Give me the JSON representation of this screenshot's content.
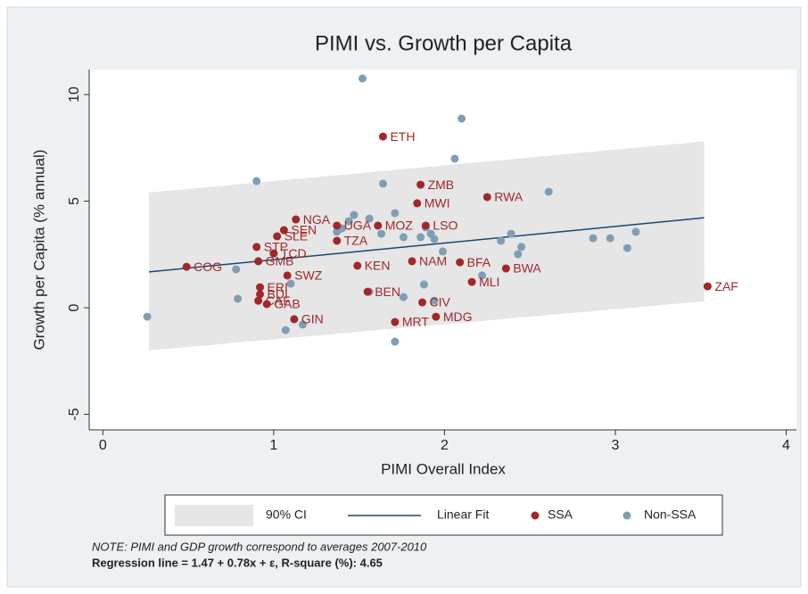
{
  "chart_data": {
    "type": "scatter",
    "title": "PIMI vs. Growth per Capita",
    "x_label": "PIMI Overall Index",
    "y_label": "Growth per Capita (% annual)",
    "xlim": [
      -0.08,
      4.06
    ],
    "ylim": [
      -5.73,
      11.17
    ],
    "xticks": [
      0,
      1,
      2,
      3,
      4
    ],
    "yticks": [
      -5,
      0,
      5,
      10
    ],
    "band": {
      "name": "90% CI",
      "color": "#e6e6e6",
      "x": [
        0.27,
        3.52
      ],
      "lower": [
        -2.0,
        0.3
      ],
      "upper": [
        5.4,
        7.8
      ]
    },
    "fit": {
      "name": "Linear Fit",
      "color": "#1a476f",
      "x": [
        0.27,
        3.52
      ],
      "y": [
        1.68,
        4.22
      ]
    },
    "series": [
      {
        "name": "SSA",
        "color": "#a0282a",
        "labels": [
          "ETH",
          "ZMB",
          "RWA",
          "MWI",
          "NGA",
          "UGA",
          "MOZ",
          "LSO",
          "SEN",
          "SLE",
          "TZA",
          "STP",
          "TCD",
          "GMB",
          "COG",
          "KEN",
          "NAM",
          "BFA",
          "BWA",
          "MLI",
          "ZAF",
          "SWZ",
          "BEN",
          "CIV",
          "MDG",
          "MRT",
          "GIN",
          "ERI",
          "BDI",
          "CAF",
          "GAB"
        ],
        "x": [
          1.64,
          1.86,
          2.25,
          1.84,
          1.13,
          1.37,
          1.61,
          1.89,
          1.06,
          1.02,
          1.37,
          0.9,
          1.0,
          0.91,
          0.49,
          1.49,
          1.81,
          2.09,
          2.36,
          2.16,
          3.54,
          1.08,
          1.55,
          1.87,
          1.95,
          1.71,
          1.12,
          0.92,
          0.92,
          0.91,
          0.96
        ],
        "values": [
          8.03,
          5.77,
          5.19,
          4.9,
          4.14,
          3.85,
          3.85,
          3.85,
          3.64,
          3.35,
          3.14,
          2.85,
          2.55,
          2.18,
          1.92,
          1.97,
          2.18,
          2.13,
          1.84,
          1.21,
          1.0,
          1.51,
          0.75,
          0.25,
          -0.42,
          -0.67,
          -0.54,
          0.96,
          0.63,
          0.33,
          0.17
        ]
      },
      {
        "name": "Non-SSA",
        "color": "#7f9eb6",
        "x": [
          0.26,
          0.79,
          0.78,
          0.9,
          1.07,
          1.17,
          1.1,
          1.37,
          1.4,
          1.44,
          1.47,
          1.56,
          1.63,
          1.64,
          1.71,
          1.76,
          1.86,
          1.89,
          1.92,
          1.94,
          1.99,
          2.06,
          2.1,
          1.52,
          1.71,
          1.56,
          1.76,
          1.88,
          1.94,
          2.22,
          2.33,
          2.39,
          2.43,
          2.45,
          2.61,
          2.87,
          2.97,
          3.07,
          3.12
        ],
        "values": [
          -0.42,
          0.42,
          1.8,
          5.94,
          -1.05,
          -0.79,
          1.13,
          3.56,
          3.72,
          4.06,
          4.35,
          4.18,
          3.47,
          5.82,
          4.44,
          3.31,
          3.31,
          3.77,
          3.47,
          3.22,
          2.64,
          6.99,
          8.87,
          10.75,
          -1.59,
          0.75,
          0.5,
          1.09,
          0.33,
          1.51,
          3.14,
          3.47,
          2.51,
          2.85,
          5.44,
          3.26,
          3.26,
          2.8,
          3.56
        ]
      }
    ],
    "note": "NOTE: PIMI and GDP growth correspond to averages 2007-2010",
    "caption": "Regression line = 1.47 + 0.78x + ε,  R-square (%): 4.65"
  }
}
